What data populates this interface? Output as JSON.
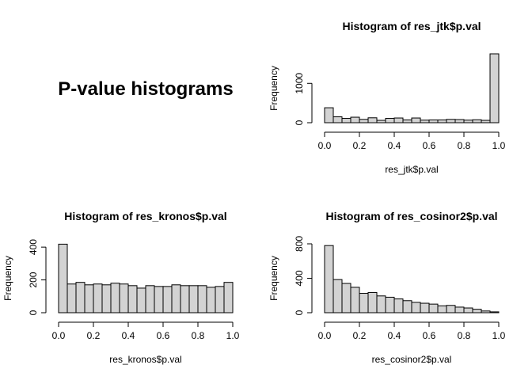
{
  "figure_title": "P-value histograms",
  "chart_data": [
    {
      "type": "bar",
      "title": "Histogram of res_jtk$p.val",
      "xlabel": "res_jtk$p.val",
      "ylabel": "Frequency",
      "bin_width": 0.05,
      "xlim": [
        0,
        1
      ],
      "ylim": [
        0,
        1750
      ],
      "x_ticks": [
        0.0,
        0.2,
        0.4,
        0.6,
        0.8,
        1.0
      ],
      "x_tick_labels": [
        "0.0",
        "0.2",
        "0.4",
        "0.6",
        "0.8",
        "1.0"
      ],
      "y_ticks": [
        0,
        1000
      ],
      "y_tick_labels": [
        "0",
        "1000"
      ],
      "values": [
        380,
        150,
        110,
        140,
        85,
        125,
        60,
        110,
        120,
        70,
        120,
        65,
        70,
        70,
        85,
        80,
        65,
        75,
        60,
        1750
      ]
    },
    {
      "type": "bar",
      "title": "Histogram of res_kronos$p.val",
      "xlabel": "res_kronos$p.val",
      "ylabel": "Frequency",
      "bin_width": 0.05,
      "xlim": [
        0,
        1
      ],
      "ylim": [
        0,
        420
      ],
      "x_ticks": [
        0.0,
        0.2,
        0.4,
        0.6,
        0.8,
        1.0
      ],
      "x_tick_labels": [
        "0.0",
        "0.2",
        "0.4",
        "0.6",
        "0.8",
        "1.0"
      ],
      "y_ticks": [
        0,
        200,
        400
      ],
      "y_tick_labels": [
        "0",
        "200",
        "400"
      ],
      "values": [
        418,
        175,
        185,
        170,
        175,
        170,
        180,
        175,
        165,
        150,
        165,
        160,
        160,
        170,
        165,
        165,
        165,
        155,
        160,
        185
      ]
    },
    {
      "type": "bar",
      "title": "Histogram of res_cosinor2$p.val",
      "xlabel": "res_cosinor2$p.val",
      "ylabel": "Frequency",
      "bin_width": 0.05,
      "xlim": [
        0,
        1
      ],
      "ylim": [
        0,
        800
      ],
      "x_ticks": [
        0.0,
        0.2,
        0.4,
        0.6,
        0.8,
        1.0
      ],
      "x_tick_labels": [
        "0.0",
        "0.2",
        "0.4",
        "0.6",
        "0.8",
        "1.0"
      ],
      "y_ticks": [
        0,
        400,
        800
      ],
      "y_tick_labels": [
        "0",
        "400",
        "800"
      ],
      "values": [
        780,
        385,
        340,
        295,
        225,
        235,
        195,
        180,
        160,
        140,
        120,
        110,
        100,
        80,
        85,
        65,
        55,
        40,
        20,
        10
      ]
    }
  ]
}
